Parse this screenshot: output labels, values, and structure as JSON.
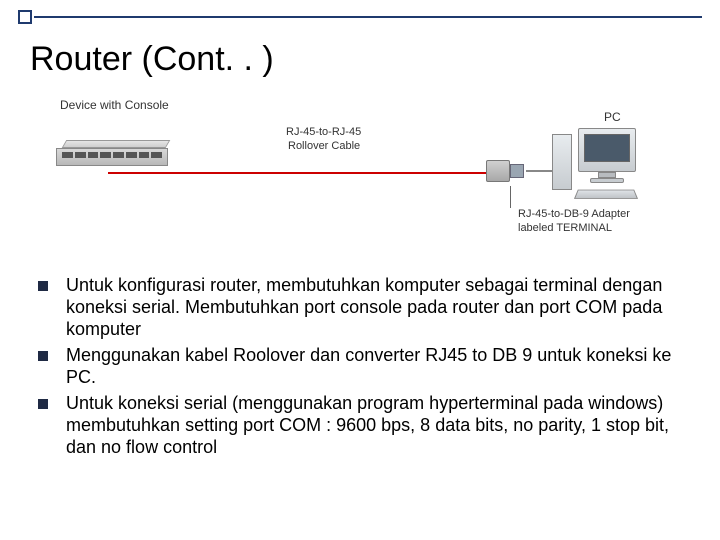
{
  "title": "Router (Cont. . )",
  "diagram": {
    "device_label": "Device with Console",
    "cable_label_top": "RJ-45-to-RJ-45",
    "cable_label_bottom": "Rollover Cable",
    "pc_label": "PC",
    "adapter_label_top": "RJ-45-to-DB-9 Adapter",
    "adapter_label_bottom": "labeled TERMINAL",
    "cable_color": "#cc0000"
  },
  "bullets": [
    "Untuk konfigurasi router, membutuhkan komputer sebagai terminal dengan koneksi serial. Membutuhkan port console pada router dan port COM pada komputer",
    "Menggunakan kabel Roolover dan converter RJ45 to DB 9 untuk koneksi ke PC.",
    "Untuk koneksi serial (menggunakan program hyperterminal pada windows) membutuhkan setting port COM : 9600 bps, 8 data bits, no parity, 1 stop bit, dan no flow control"
  ],
  "colors": {
    "accent": "#1f3a6e",
    "bullet": "#1f2a44",
    "background": "#ffffff"
  }
}
